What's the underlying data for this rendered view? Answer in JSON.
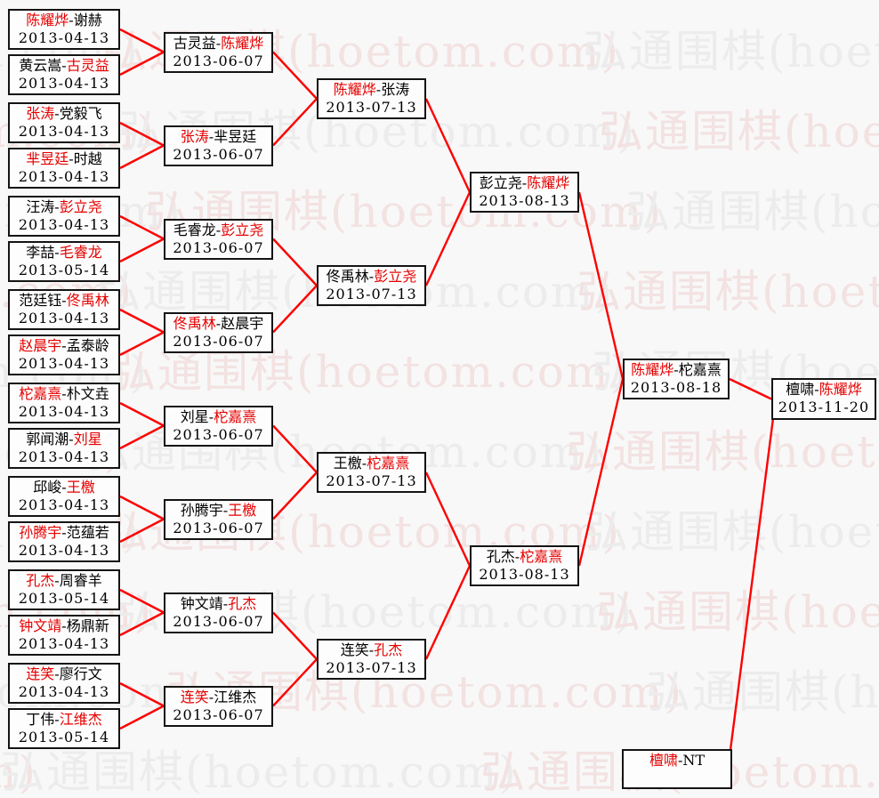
{
  "watermark": {
    "text": "弘通围棋(hoetom.com)",
    "color_pink": "#f3e2e2",
    "color_gray": "#ececec"
  },
  "labels": {
    "separator": "-"
  },
  "colors": {
    "winner_red": "#e60000",
    "line_red": "#ff0000",
    "text_black": "#000000",
    "box_border": "#141414",
    "background": "#f8f8f8",
    "box_background": "#fdfdfd"
  },
  "bracket": {
    "rounds": [
      {
        "matches": [
          {
            "p1": "陈耀烨",
            "p2": "谢赫",
            "red": 1,
            "date": "2013-04-13"
          },
          {
            "p1": "黄云嵩",
            "p2": "古灵益",
            "red": 2,
            "date": "2013-04-13"
          },
          {
            "p1": "张涛",
            "p2": "党毅飞",
            "red": 1,
            "date": "2013-04-13"
          },
          {
            "p1": "芈昱廷",
            "p2": "时越",
            "red": 1,
            "date": "2013-04-13"
          },
          {
            "p1": "汪涛",
            "p2": "彭立尧",
            "red": 2,
            "date": "2013-04-13"
          },
          {
            "p1": "李喆",
            "p2": "毛睿龙",
            "red": 2,
            "date": "2013-05-14"
          },
          {
            "p1": "范廷钰",
            "p2": "佟禹林",
            "red": 2,
            "date": "2013-04-13"
          },
          {
            "p1": "赵晨宇",
            "p2": "孟泰龄",
            "red": 1,
            "date": "2013-04-13"
          },
          {
            "p1": "柁嘉熹",
            "p2": "朴文垚",
            "red": 1,
            "date": "2013-04-13"
          },
          {
            "p1": "郭闻潮",
            "p2": "刘星",
            "red": 2,
            "date": "2013-04-13"
          },
          {
            "p1": "邱峻",
            "p2": "王檄",
            "red": 2,
            "date": "2013-04-13"
          },
          {
            "p1": "孙腾宇",
            "p2": "范蕴若",
            "red": 1,
            "date": "2013-04-13"
          },
          {
            "p1": "孔杰",
            "p2": "周睿羊",
            "red": 1,
            "date": "2013-05-14"
          },
          {
            "p1": "钟文靖",
            "p2": "杨鼎新",
            "red": 1,
            "date": "2013-04-13"
          },
          {
            "p1": "连笑",
            "p2": "廖行文",
            "red": 1,
            "date": "2013-04-13"
          },
          {
            "p1": "丁伟",
            "p2": "江维杰",
            "red": 2,
            "date": "2013-05-14"
          }
        ]
      },
      {
        "matches": [
          {
            "p1": "古灵益",
            "p2": "陈耀烨",
            "red": 2,
            "date": "2013-06-07"
          },
          {
            "p1": "张涛",
            "p2": "芈昱廷",
            "red": 1,
            "date": "2013-06-07"
          },
          {
            "p1": "毛睿龙",
            "p2": "彭立尧",
            "red": 2,
            "date": "2013-06-07"
          },
          {
            "p1": "佟禹林",
            "p2": "赵晨宇",
            "red": 1,
            "date": "2013-06-07"
          },
          {
            "p1": "刘星",
            "p2": "柁嘉熹",
            "red": 2,
            "date": "2013-06-07"
          },
          {
            "p1": "孙腾宇",
            "p2": "王檄",
            "red": 2,
            "date": "2013-06-07"
          },
          {
            "p1": "钟文靖",
            "p2": "孔杰",
            "red": 2,
            "date": "2013-06-07"
          },
          {
            "p1": "连笑",
            "p2": "江维杰",
            "red": 1,
            "date": "2013-06-07"
          }
        ]
      },
      {
        "matches": [
          {
            "p1": "陈耀烨",
            "p2": "张涛",
            "red": 1,
            "date": "2013-07-13"
          },
          {
            "p1": "佟禹林",
            "p2": "彭立尧",
            "red": 2,
            "date": "2013-07-13"
          },
          {
            "p1": "王檄",
            "p2": "柁嘉熹",
            "red": 2,
            "date": "2013-07-13"
          },
          {
            "p1": "连笑",
            "p2": "孔杰",
            "red": 2,
            "date": "2013-07-13"
          }
        ]
      },
      {
        "matches": [
          {
            "p1": "彭立尧",
            "p2": "陈耀烨",
            "red": 2,
            "date": "2013-08-13"
          },
          {
            "p1": "孔杰",
            "p2": "柁嘉熹",
            "red": 2,
            "date": "2013-08-13"
          }
        ]
      },
      {
        "matches": [
          {
            "p1": "陈耀烨",
            "p2": "柁嘉熹",
            "red": 1,
            "date": "2013-08-18"
          }
        ]
      }
    ],
    "title_match": {
      "p1": "檀啸",
      "p2": "陈耀烨",
      "red": 2,
      "date": "2013-11-20"
    },
    "defender": {
      "p1": "檀啸",
      "p2": "NT",
      "red": 1,
      "date": ""
    }
  }
}
